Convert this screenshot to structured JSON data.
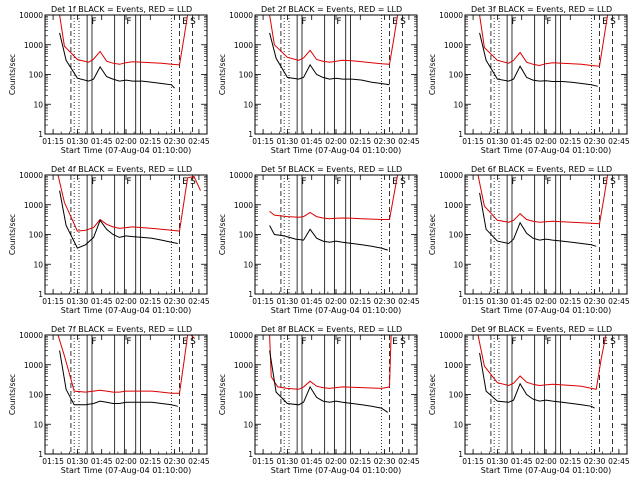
{
  "figure": {
    "x_label": "Start Time (07-Aug-04 01:10:00)",
    "y_label": "Counts/sec",
    "x_ticks": [
      "01:15",
      "01:30",
      "01:45",
      "02:00",
      "02:15",
      "02:30",
      "02:45"
    ],
    "y_ticks": [
      "1",
      "10",
      "100",
      "1000",
      "10000"
    ],
    "colors": {
      "events": "#000000",
      "lld": "#dd0000",
      "frame": "#000000"
    },
    "marker_legend": [
      "E",
      "F",
      "S"
    ]
  },
  "chart_data": [
    {
      "type": "line",
      "title": "Det 1f BLACK = Events, RED = LLD",
      "ylim": [
        1,
        10000
      ],
      "xlim": [
        "01:10",
        "02:50"
      ],
      "series": [
        {
          "name": "Events",
          "color": "#000000",
          "x": [
            "01:19",
            "01:23",
            "01:30",
            "01:37",
            "01:40",
            "01:44",
            "01:48",
            "01:52",
            "01:56",
            "02:00",
            "02:04",
            "02:10",
            "02:16",
            "02:22",
            "02:28",
            "02:30"
          ],
          "values": [
            2500,
            300,
            75,
            60,
            70,
            180,
            85,
            70,
            60,
            65,
            60,
            60,
            55,
            50,
            45,
            35
          ]
        },
        {
          "name": "LLD",
          "color": "#dd0000",
          "x": [
            "01:19",
            "01:22",
            "01:30",
            "01:37",
            "01:40",
            "01:44",
            "01:48",
            "01:52",
            "01:56",
            "02:00",
            "02:04",
            "02:10",
            "02:16",
            "02:22",
            "02:28",
            "02:33",
            "02:36",
            "02:38",
            "02:40"
          ],
          "values": [
            10000,
            900,
            320,
            260,
            330,
            600,
            280,
            240,
            220,
            250,
            270,
            260,
            250,
            240,
            220,
            210,
            2000,
            10000,
            10000
          ]
        }
      ]
    },
    {
      "type": "line",
      "title": "Det 2f BLACK = Events, RED = LLD",
      "ylim": [
        1,
        10000
      ],
      "xlim": [
        "01:10",
        "02:50"
      ],
      "series": [
        {
          "name": "Events",
          "color": "#000000",
          "x": [
            "01:19",
            "01:23",
            "01:30",
            "01:37",
            "01:40",
            "01:44",
            "01:48",
            "01:52",
            "01:56",
            "02:00",
            "02:04",
            "02:10",
            "02:16",
            "02:22",
            "02:28",
            "02:33"
          ],
          "values": [
            2500,
            350,
            80,
            70,
            80,
            210,
            100,
            80,
            70,
            75,
            70,
            70,
            65,
            55,
            50,
            45
          ]
        },
        {
          "name": "LLD",
          "color": "#dd0000",
          "x": [
            "01:19",
            "01:22",
            "01:30",
            "01:37",
            "01:40",
            "01:44",
            "01:48",
            "01:52",
            "01:56",
            "02:00",
            "02:04",
            "02:10",
            "02:16",
            "02:22",
            "02:28",
            "02:33",
            "02:36",
            "02:38",
            "02:40"
          ],
          "values": [
            10000,
            1000,
            380,
            300,
            360,
            650,
            320,
            280,
            260,
            280,
            300,
            290,
            270,
            250,
            230,
            220,
            2000,
            10000,
            10000
          ]
        }
      ]
    },
    {
      "type": "line",
      "title": "Det 3f BLACK = Events, RED = LLD",
      "ylim": [
        1,
        10000
      ],
      "xlim": [
        "01:10",
        "02:50"
      ],
      "series": [
        {
          "name": "Events",
          "color": "#000000",
          "x": [
            "01:19",
            "01:23",
            "01:30",
            "01:37",
            "01:40",
            "01:44",
            "01:48",
            "01:52",
            "01:56",
            "02:00",
            "02:04",
            "02:10",
            "02:16",
            "02:22",
            "02:28",
            "02:32"
          ],
          "values": [
            2500,
            300,
            70,
            60,
            70,
            190,
            80,
            65,
            60,
            62,
            58,
            58,
            55,
            50,
            45,
            40
          ]
        },
        {
          "name": "LLD",
          "color": "#dd0000",
          "x": [
            "01:19",
            "01:22",
            "01:30",
            "01:37",
            "01:40",
            "01:44",
            "01:48",
            "01:52",
            "01:56",
            "02:00",
            "02:04",
            "02:10",
            "02:16",
            "02:22",
            "02:28",
            "02:33",
            "02:36",
            "02:38",
            "02:40"
          ],
          "values": [
            10000,
            800,
            300,
            240,
            300,
            550,
            260,
            220,
            200,
            230,
            250,
            240,
            230,
            220,
            200,
            190,
            2000,
            10000,
            10000
          ]
        }
      ]
    },
    {
      "type": "line",
      "title": "Det 4f BLACK = Events, RED = LLD",
      "ylim": [
        1,
        10000
      ],
      "xlim": [
        "01:10",
        "02:50"
      ],
      "series": [
        {
          "name": "Events",
          "color": "#000000",
          "x": [
            "01:19",
            "01:23",
            "01:30",
            "01:35",
            "01:40",
            "01:44",
            "01:48",
            "01:52",
            "01:56",
            "02:00",
            "02:04",
            "02:10",
            "02:16",
            "02:22",
            "02:28",
            "02:32"
          ],
          "values": [
            3000,
            200,
            35,
            45,
            80,
            300,
            150,
            100,
            80,
            90,
            85,
            80,
            75,
            65,
            55,
            50
          ]
        },
        {
          "name": "LLD",
          "color": "#dd0000",
          "x": [
            "01:18",
            "01:22",
            "01:30",
            "01:35",
            "01:40",
            "01:44",
            "01:48",
            "01:52",
            "01:56",
            "02:00",
            "02:04",
            "02:10",
            "02:16",
            "02:22",
            "02:28",
            "02:33",
            "02:36",
            "02:38",
            "02:42",
            "02:46"
          ],
          "values": [
            10000,
            1200,
            130,
            140,
            170,
            320,
            220,
            180,
            160,
            170,
            180,
            170,
            160,
            150,
            140,
            130,
            1500,
            8000,
            9000,
            3000
          ]
        }
      ]
    },
    {
      "type": "line",
      "title": "Det 5f BLACK = Events, RED = LLD",
      "ylim": [
        1,
        10000
      ],
      "xlim": [
        "01:10",
        "02:50"
      ],
      "series": [
        {
          "name": "Events",
          "color": "#000000",
          "x": [
            "01:19",
            "01:22",
            "01:28",
            "01:35",
            "01:40",
            "01:44",
            "01:48",
            "01:52",
            "01:56",
            "02:00",
            "02:04",
            "02:10",
            "02:16",
            "02:22",
            "02:28",
            "02:32"
          ],
          "values": [
            200,
            100,
            90,
            70,
            65,
            150,
            75,
            60,
            55,
            60,
            55,
            50,
            45,
            40,
            35,
            30
          ]
        },
        {
          "name": "LLD",
          "color": "#dd0000",
          "x": [
            "01:19",
            "01:22",
            "01:30",
            "01:37",
            "01:40",
            "01:44",
            "01:48",
            "01:52",
            "01:56",
            "02:00",
            "02:04",
            "02:10",
            "02:16",
            "02:22",
            "02:28",
            "02:33",
            "02:36",
            "02:38",
            "02:40"
          ],
          "values": [
            600,
            450,
            400,
            380,
            400,
            550,
            400,
            360,
            340,
            350,
            360,
            350,
            340,
            330,
            320,
            320,
            2500,
            10000,
            10000
          ]
        }
      ]
    },
    {
      "type": "line",
      "title": "Det 6f BLACK = Events, RED = LLD",
      "ylim": [
        1,
        10000
      ],
      "xlim": [
        "01:10",
        "02:50"
      ],
      "series": [
        {
          "name": "Events",
          "color": "#000000",
          "x": [
            "01:19",
            "01:23",
            "01:30",
            "01:37",
            "01:40",
            "01:44",
            "01:48",
            "01:52",
            "01:56",
            "02:00",
            "02:04",
            "02:10",
            "02:16",
            "02:22",
            "02:28",
            "02:31"
          ],
          "values": [
            2500,
            150,
            60,
            50,
            70,
            250,
            110,
            75,
            65,
            70,
            65,
            60,
            55,
            50,
            45,
            40
          ]
        },
        {
          "name": "LLD",
          "color": "#dd0000",
          "x": [
            "01:18",
            "01:22",
            "01:30",
            "01:37",
            "01:40",
            "01:44",
            "01:48",
            "01:52",
            "01:56",
            "02:00",
            "02:04",
            "02:10",
            "02:16",
            "02:22",
            "02:28",
            "02:33",
            "02:36",
            "02:38",
            "02:40"
          ],
          "values": [
            10000,
            900,
            300,
            260,
            300,
            500,
            320,
            280,
            260,
            270,
            280,
            270,
            260,
            250,
            240,
            230,
            2000,
            10000,
            10000
          ]
        }
      ]
    },
    {
      "type": "line",
      "title": "Det 7f BLACK = Events, RED = LLD",
      "ylim": [
        1,
        10000
      ],
      "xlim": [
        "01:10",
        "02:50"
      ],
      "series": [
        {
          "name": "Events",
          "color": "#000000",
          "x": [
            "01:19",
            "01:23",
            "01:28",
            "01:35",
            "01:40",
            "01:44",
            "01:48",
            "01:52",
            "01:56",
            "02:00",
            "02:04",
            "02:10",
            "02:16",
            "02:22",
            "02:28",
            "02:32"
          ],
          "values": [
            3000,
            150,
            45,
            45,
            50,
            60,
            55,
            50,
            50,
            55,
            55,
            55,
            55,
            50,
            45,
            40
          ]
        },
        {
          "name": "LLD",
          "color": "#dd0000",
          "x": [
            "01:18",
            "01:22",
            "01:28",
            "01:35",
            "01:40",
            "01:44",
            "01:48",
            "01:52",
            "01:56",
            "02:00",
            "02:04",
            "02:10",
            "02:16",
            "02:22",
            "02:28",
            "02:33",
            "02:36",
            "02:38",
            "02:40",
            "02:42"
          ],
          "values": [
            10000,
            2000,
            130,
            120,
            130,
            140,
            130,
            120,
            120,
            130,
            130,
            130,
            130,
            120,
            110,
            110,
            1500,
            10000,
            10000,
            8000
          ]
        }
      ]
    },
    {
      "type": "line",
      "title": "Det 8f BLACK = Events, RED = LLD",
      "ylim": [
        1,
        10000
      ],
      "xlim": [
        "01:10",
        "02:50"
      ],
      "series": [
        {
          "name": "Events",
          "color": "#000000",
          "x": [
            "01:19",
            "01:23",
            "01:30",
            "01:37",
            "01:40",
            "01:44",
            "01:48",
            "01:52",
            "01:56",
            "02:00",
            "02:04",
            "02:10",
            "02:16",
            "02:22",
            "02:28",
            "02:32"
          ],
          "values": [
            3000,
            120,
            50,
            45,
            55,
            180,
            80,
            60,
            55,
            60,
            55,
            50,
            45,
            40,
            35,
            25
          ]
        },
        {
          "name": "LLD",
          "color": "#dd0000",
          "x": [
            "01:17",
            "01:19",
            "01:20",
            "01:24",
            "01:30",
            "01:37",
            "01:40",
            "01:44",
            "01:48",
            "01:52",
            "01:56",
            "02:00",
            "02:04",
            "02:10",
            "02:16",
            "02:22",
            "02:28",
            "02:33",
            "02:34",
            "02:36",
            "02:40"
          ],
          "values": [
            10000,
            10000,
            400,
            180,
            160,
            150,
            180,
            280,
            190,
            170,
            160,
            170,
            180,
            175,
            170,
            165,
            160,
            180,
            10000,
            10000,
            10000
          ]
        }
      ]
    },
    {
      "type": "line",
      "title": "Det 9f BLACK = Events, RED = LLD",
      "ylim": [
        1,
        10000
      ],
      "xlim": [
        "01:10",
        "02:50"
      ],
      "series": [
        {
          "name": "Events",
          "color": "#000000",
          "x": [
            "01:19",
            "01:23",
            "01:30",
            "01:37",
            "01:40",
            "01:44",
            "01:48",
            "01:52",
            "01:56",
            "02:00",
            "02:04",
            "02:10",
            "02:16",
            "02:22",
            "02:28",
            "02:30"
          ],
          "values": [
            2500,
            130,
            60,
            55,
            65,
            230,
            100,
            70,
            60,
            65,
            60,
            55,
            50,
            45,
            40,
            35
          ]
        },
        {
          "name": "LLD",
          "color": "#dd0000",
          "x": [
            "01:18",
            "01:22",
            "01:30",
            "01:37",
            "01:40",
            "01:44",
            "01:48",
            "01:52",
            "01:56",
            "02:00",
            "02:04",
            "02:10",
            "02:16",
            "02:22",
            "02:28",
            "02:31",
            "02:34",
            "02:37",
            "02:40"
          ],
          "values": [
            10000,
            900,
            250,
            200,
            240,
            420,
            260,
            220,
            200,
            210,
            220,
            210,
            200,
            190,
            160,
            150,
            1500,
            10000,
            10000
          ]
        }
      ]
    }
  ]
}
